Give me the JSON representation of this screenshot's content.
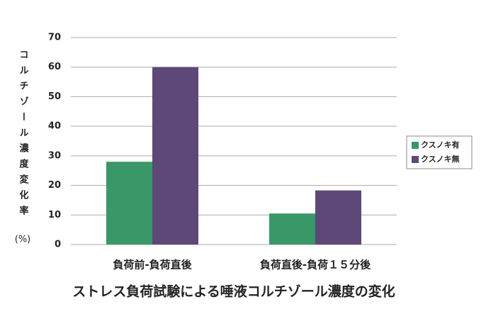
{
  "chart_data": {
    "type": "bar",
    "title": "ストレス負荷試験による唾液コルチゾール濃度の変化",
    "ylabel": "コルチゾール濃度変化率",
    "ylabel_unit": "(%)",
    "categories": [
      "負荷前-負荷直後",
      "負荷直後-負荷１５分後"
    ],
    "series": [
      {
        "name": "クスノキ有",
        "color": "#3a9767",
        "values": [
          28,
          10.5
        ]
      },
      {
        "name": "クスノキ無",
        "color": "#5d4878",
        "values": [
          60,
          18.3
        ]
      }
    ],
    "ylim": [
      0,
      70
    ],
    "yticks": [
      0,
      10,
      20,
      30,
      40,
      50,
      60,
      70
    ],
    "grid": true,
    "legend": "right"
  }
}
